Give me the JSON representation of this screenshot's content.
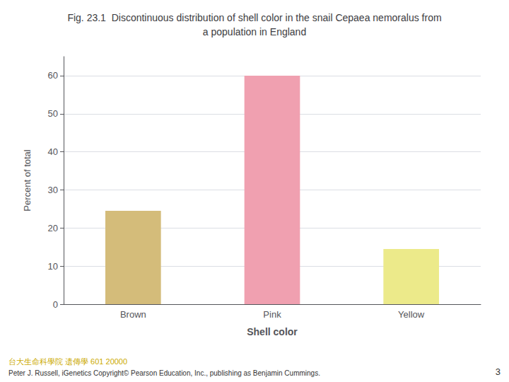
{
  "chart_data": {
    "type": "bar",
    "title": "Fig. 23.1  Discontinuous distribution of shell color in the snail Cepaea nemoralus from\na population in England",
    "categories": [
      "Brown",
      "Pink",
      "Yellow"
    ],
    "values": [
      24.5,
      60.0,
      14.5
    ],
    "colors": [
      "#d4bc7a",
      "#f0a0b0",
      "#ecea8a"
    ],
    "xlabel": "Shell color",
    "ylabel": "Percent of total",
    "ylim": [
      0,
      65
    ],
    "yticks": [
      0,
      10,
      20,
      30,
      40,
      50,
      60
    ],
    "grid": true,
    "annotations": [
      "Peter J. Russell, iGenetics Copyright© Pearson Education, Inc., publishing as Benjamin Cummings.",
      "台大生命科學院 遗傳學 601 20000",
      "3"
    ]
  }
}
